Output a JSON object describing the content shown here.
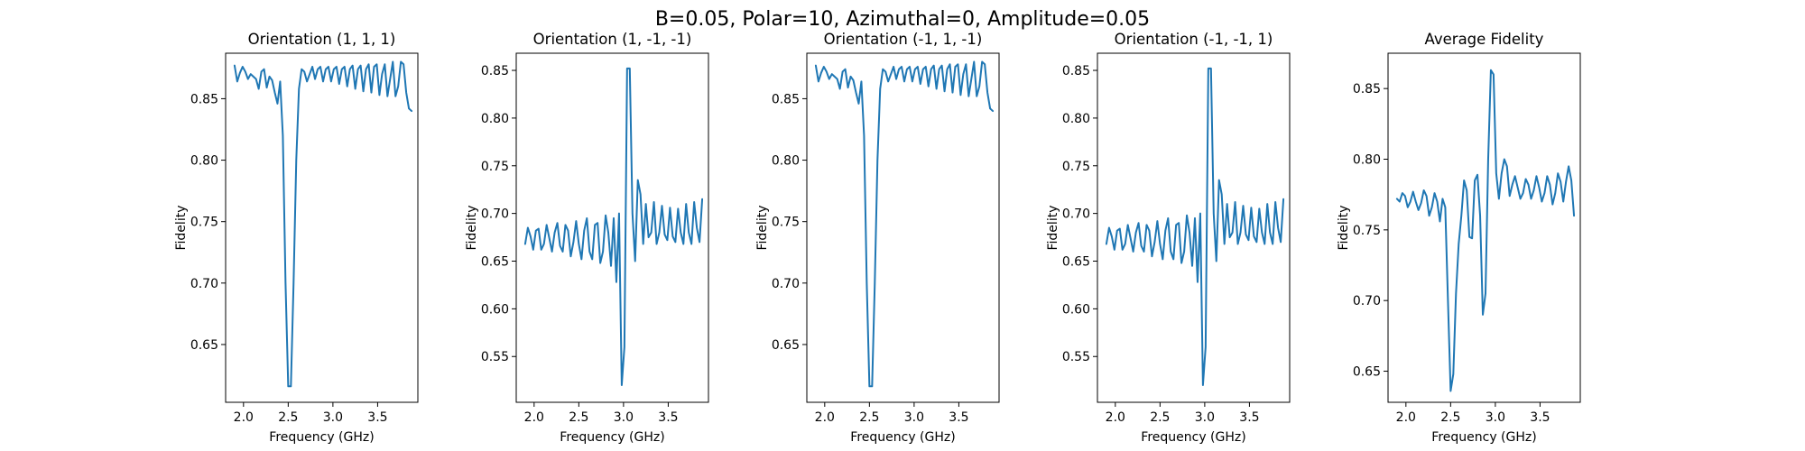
{
  "figure": {
    "suptitle": "B=0.05, Polar=10, Azimuthal=0, Amplitude=0.05"
  },
  "colors": {
    "line": "#1f77b4",
    "axes": "#000000",
    "background": "#ffffff"
  },
  "chart_data": [
    {
      "type": "line",
      "title": "Orientation (1, 1, 1)",
      "xlabel": "Frequency (GHz)",
      "ylabel": "Fidelity",
      "xlim": [
        1.8,
        3.95
      ],
      "ylim": [
        0.603,
        0.887
      ],
      "xticks": [
        2.0,
        2.5,
        3.0,
        3.5
      ],
      "xtick_labels": [
        "2.0",
        "2.5",
        "3.0",
        "3.5"
      ],
      "yticks": [
        0.65,
        0.7,
        0.75,
        0.8,
        0.85
      ],
      "ytick_labels": [
        "0.65",
        "0.70",
        "0.75",
        "0.80",
        "0.85"
      ],
      "series": [
        {
          "x": [
            1.9,
            1.93,
            1.96,
            1.99,
            2.02,
            2.05,
            2.08,
            2.11,
            2.14,
            2.17,
            2.2,
            2.23,
            2.26,
            2.29,
            2.32,
            2.35,
            2.38,
            2.41,
            2.44,
            2.47,
            2.5,
            2.53,
            2.56,
            2.59,
            2.62,
            2.65,
            2.68,
            2.71,
            2.74,
            2.77,
            2.8,
            2.83,
            2.86,
            2.89,
            2.92,
            2.95,
            2.98,
            3.01,
            3.04,
            3.07,
            3.1,
            3.13,
            3.16,
            3.19,
            3.22,
            3.25,
            3.28,
            3.31,
            3.34,
            3.37,
            3.4,
            3.43,
            3.46,
            3.49,
            3.52,
            3.55,
            3.58,
            3.61,
            3.64,
            3.67,
            3.7,
            3.73,
            3.76,
            3.79,
            3.82,
            3.85,
            3.88
          ],
          "y": [
            0.877,
            0.864,
            0.871,
            0.876,
            0.872,
            0.866,
            0.87,
            0.868,
            0.866,
            0.858,
            0.872,
            0.874,
            0.859,
            0.868,
            0.865,
            0.855,
            0.846,
            0.864,
            0.82,
            0.7,
            0.616,
            0.616,
            0.7,
            0.8,
            0.858,
            0.874,
            0.872,
            0.864,
            0.87,
            0.876,
            0.866,
            0.874,
            0.876,
            0.864,
            0.874,
            0.876,
            0.864,
            0.874,
            0.876,
            0.862,
            0.874,
            0.876,
            0.86,
            0.874,
            0.877,
            0.858,
            0.874,
            0.877,
            0.856,
            0.874,
            0.878,
            0.855,
            0.876,
            0.878,
            0.853,
            0.87,
            0.878,
            0.852,
            0.866,
            0.88,
            0.852,
            0.86,
            0.88,
            0.878,
            0.855,
            0.842,
            0.84
          ]
        }
      ]
    },
    {
      "type": "line",
      "title": "Orientation (1, -1, -1)",
      "xlabel": "Frequency (GHz)",
      "ylabel": "Fidelity",
      "xlim": [
        1.8,
        3.95
      ],
      "ylim": [
        0.502,
        0.868
      ],
      "xticks": [
        2.0,
        2.5,
        3.0,
        3.5
      ],
      "xtick_labels": [
        "2.0",
        "2.5",
        "3.0",
        "3.5"
      ],
      "yticks": [
        0.55,
        0.6,
        0.65,
        0.7,
        0.75,
        0.8,
        0.85
      ],
      "ytick_labels": [
        "0.55",
        "0.60",
        "0.65",
        "0.70",
        "0.75",
        "0.80",
        "0.85"
      ],
      "series": [
        {
          "x": [
            1.9,
            1.93,
            1.96,
            1.99,
            2.02,
            2.05,
            2.08,
            2.11,
            2.14,
            2.17,
            2.2,
            2.23,
            2.26,
            2.29,
            2.32,
            2.35,
            2.38,
            2.41,
            2.44,
            2.47,
            2.5,
            2.53,
            2.56,
            2.59,
            2.62,
            2.65,
            2.68,
            2.71,
            2.74,
            2.77,
            2.8,
            2.83,
            2.86,
            2.89,
            2.92,
            2.95,
            2.98,
            3.01,
            3.04,
            3.07,
            3.1,
            3.13,
            3.16,
            3.19,
            3.22,
            3.25,
            3.28,
            3.31,
            3.34,
            3.37,
            3.4,
            3.43,
            3.46,
            3.49,
            3.52,
            3.55,
            3.58,
            3.61,
            3.64,
            3.67,
            3.7,
            3.73,
            3.76,
            3.79,
            3.82,
            3.85,
            3.88
          ],
          "y": [
            0.668,
            0.685,
            0.676,
            0.662,
            0.682,
            0.684,
            0.662,
            0.668,
            0.688,
            0.674,
            0.66,
            0.68,
            0.69,
            0.666,
            0.66,
            0.688,
            0.682,
            0.655,
            0.67,
            0.692,
            0.668,
            0.652,
            0.682,
            0.695,
            0.66,
            0.652,
            0.688,
            0.69,
            0.648,
            0.66,
            0.698,
            0.68,
            0.645,
            0.695,
            0.628,
            0.7,
            0.52,
            0.56,
            0.852,
            0.852,
            0.7,
            0.65,
            0.735,
            0.72,
            0.668,
            0.71,
            0.675,
            0.68,
            0.712,
            0.668,
            0.68,
            0.708,
            0.678,
            0.672,
            0.706,
            0.676,
            0.67,
            0.705,
            0.68,
            0.668,
            0.71,
            0.68,
            0.668,
            0.712,
            0.685,
            0.67,
            0.715
          ]
        }
      ]
    },
    {
      "type": "line",
      "title": "Orientation (-1, 1, -1)",
      "xlabel": "Frequency (GHz)",
      "ylabel": "Fidelity",
      "xlim": [
        1.8,
        3.95
      ],
      "ylim": [
        0.603,
        0.887
      ],
      "xticks": [
        2.0,
        2.5,
        3.0,
        3.5
      ],
      "xtick_labels": [
        "2.0",
        "2.5",
        "3.0",
        "3.5"
      ],
      "yticks": [
        0.65,
        0.7,
        0.75,
        0.8,
        0.85
      ],
      "ytick_labels": [
        "0.65",
        "0.70",
        "0.75",
        "0.80",
        "0.85"
      ],
      "series": [
        {
          "x": [
            1.9,
            1.93,
            1.96,
            1.99,
            2.02,
            2.05,
            2.08,
            2.11,
            2.14,
            2.17,
            2.2,
            2.23,
            2.26,
            2.29,
            2.32,
            2.35,
            2.38,
            2.41,
            2.44,
            2.47,
            2.5,
            2.53,
            2.56,
            2.59,
            2.62,
            2.65,
            2.68,
            2.71,
            2.74,
            2.77,
            2.8,
            2.83,
            2.86,
            2.89,
            2.92,
            2.95,
            2.98,
            3.01,
            3.04,
            3.07,
            3.1,
            3.13,
            3.16,
            3.19,
            3.22,
            3.25,
            3.28,
            3.31,
            3.34,
            3.37,
            3.4,
            3.43,
            3.46,
            3.49,
            3.52,
            3.55,
            3.58,
            3.61,
            3.64,
            3.67,
            3.7,
            3.73,
            3.76,
            3.79,
            3.82,
            3.85,
            3.88
          ],
          "y": [
            0.877,
            0.864,
            0.871,
            0.876,
            0.872,
            0.866,
            0.87,
            0.868,
            0.866,
            0.858,
            0.872,
            0.874,
            0.859,
            0.868,
            0.865,
            0.855,
            0.846,
            0.864,
            0.82,
            0.7,
            0.616,
            0.616,
            0.7,
            0.8,
            0.858,
            0.874,
            0.872,
            0.864,
            0.87,
            0.876,
            0.866,
            0.874,
            0.876,
            0.864,
            0.874,
            0.876,
            0.864,
            0.874,
            0.876,
            0.862,
            0.874,
            0.876,
            0.86,
            0.874,
            0.877,
            0.858,
            0.874,
            0.877,
            0.856,
            0.874,
            0.878,
            0.855,
            0.876,
            0.878,
            0.853,
            0.87,
            0.878,
            0.852,
            0.866,
            0.88,
            0.852,
            0.86,
            0.88,
            0.878,
            0.855,
            0.842,
            0.84
          ]
        }
      ]
    },
    {
      "type": "line",
      "title": "Orientation (-1, -1, 1)",
      "xlabel": "Frequency (GHz)",
      "ylabel": "Fidelity",
      "xlim": [
        1.8,
        3.95
      ],
      "ylim": [
        0.502,
        0.868
      ],
      "xticks": [
        2.0,
        2.5,
        3.0,
        3.5
      ],
      "xtick_labels": [
        "2.0",
        "2.5",
        "3.0",
        "3.5"
      ],
      "yticks": [
        0.55,
        0.6,
        0.65,
        0.7,
        0.75,
        0.8,
        0.85
      ],
      "ytick_labels": [
        "0.55",
        "0.60",
        "0.65",
        "0.70",
        "0.75",
        "0.80",
        "0.85"
      ],
      "series": [
        {
          "x": [
            1.9,
            1.93,
            1.96,
            1.99,
            2.02,
            2.05,
            2.08,
            2.11,
            2.14,
            2.17,
            2.2,
            2.23,
            2.26,
            2.29,
            2.32,
            2.35,
            2.38,
            2.41,
            2.44,
            2.47,
            2.5,
            2.53,
            2.56,
            2.59,
            2.62,
            2.65,
            2.68,
            2.71,
            2.74,
            2.77,
            2.8,
            2.83,
            2.86,
            2.89,
            2.92,
            2.95,
            2.98,
            3.01,
            3.04,
            3.07,
            3.1,
            3.13,
            3.16,
            3.19,
            3.22,
            3.25,
            3.28,
            3.31,
            3.34,
            3.37,
            3.4,
            3.43,
            3.46,
            3.49,
            3.52,
            3.55,
            3.58,
            3.61,
            3.64,
            3.67,
            3.7,
            3.73,
            3.76,
            3.79,
            3.82,
            3.85,
            3.88
          ],
          "y": [
            0.668,
            0.685,
            0.676,
            0.662,
            0.682,
            0.684,
            0.662,
            0.668,
            0.688,
            0.674,
            0.66,
            0.68,
            0.69,
            0.666,
            0.66,
            0.688,
            0.682,
            0.655,
            0.67,
            0.692,
            0.668,
            0.652,
            0.682,
            0.695,
            0.66,
            0.652,
            0.688,
            0.69,
            0.648,
            0.66,
            0.698,
            0.68,
            0.645,
            0.695,
            0.628,
            0.7,
            0.52,
            0.56,
            0.852,
            0.852,
            0.7,
            0.65,
            0.735,
            0.72,
            0.668,
            0.71,
            0.675,
            0.68,
            0.712,
            0.668,
            0.68,
            0.708,
            0.678,
            0.672,
            0.706,
            0.676,
            0.67,
            0.705,
            0.68,
            0.668,
            0.71,
            0.68,
            0.668,
            0.712,
            0.685,
            0.67,
            0.715
          ]
        }
      ]
    },
    {
      "type": "line",
      "title": "Average Fidelity",
      "xlabel": "Frequency (GHz)",
      "ylabel": "Fidelity",
      "xlim": [
        1.8,
        3.95
      ],
      "ylim": [
        0.628,
        0.875
      ],
      "xticks": [
        2.0,
        2.5,
        3.0,
        3.5
      ],
      "xtick_labels": [
        "2.0",
        "2.5",
        "3.0",
        "3.5"
      ],
      "yticks": [
        0.65,
        0.7,
        0.75,
        0.8,
        0.85
      ],
      "ytick_labels": [
        "0.65",
        "0.70",
        "0.75",
        "0.80",
        "0.85"
      ],
      "series": [
        {
          "x": [
            1.9,
            1.93,
            1.96,
            1.99,
            2.02,
            2.05,
            2.08,
            2.11,
            2.14,
            2.17,
            2.2,
            2.23,
            2.26,
            2.29,
            2.32,
            2.35,
            2.38,
            2.41,
            2.44,
            2.47,
            2.5,
            2.53,
            2.56,
            2.59,
            2.62,
            2.65,
            2.68,
            2.71,
            2.74,
            2.77,
            2.8,
            2.83,
            2.86,
            2.89,
            2.92,
            2.95,
            2.98,
            3.01,
            3.04,
            3.07,
            3.1,
            3.13,
            3.16,
            3.19,
            3.22,
            3.25,
            3.28,
            3.31,
            3.34,
            3.37,
            3.4,
            3.43,
            3.46,
            3.49,
            3.52,
            3.55,
            3.58,
            3.61,
            3.64,
            3.67,
            3.7,
            3.73,
            3.76,
            3.79,
            3.82,
            3.85,
            3.88
          ],
          "y": [
            0.772,
            0.77,
            0.776,
            0.774,
            0.766,
            0.77,
            0.777,
            0.77,
            0.764,
            0.769,
            0.778,
            0.774,
            0.76,
            0.766,
            0.776,
            0.77,
            0.756,
            0.772,
            0.766,
            0.7,
            0.636,
            0.648,
            0.705,
            0.74,
            0.76,
            0.785,
            0.778,
            0.745,
            0.744,
            0.785,
            0.789,
            0.76,
            0.69,
            0.705,
            0.8,
            0.863,
            0.86,
            0.79,
            0.772,
            0.79,
            0.8,
            0.795,
            0.774,
            0.782,
            0.788,
            0.78,
            0.772,
            0.776,
            0.786,
            0.782,
            0.772,
            0.778,
            0.788,
            0.78,
            0.77,
            0.776,
            0.788,
            0.782,
            0.768,
            0.776,
            0.79,
            0.784,
            0.77,
            0.784,
            0.795,
            0.785,
            0.76
          ]
        }
      ]
    }
  ]
}
